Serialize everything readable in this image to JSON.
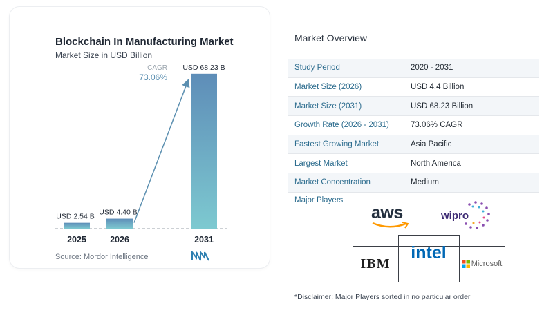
{
  "chart_data": {
    "type": "bar",
    "title": "Blockchain In Manufacturing Market",
    "subtitle": "Market Size in USD Billion",
    "categories": [
      "2025",
      "2026",
      "2031"
    ],
    "values": [
      2.54,
      4.4,
      68.23
    ],
    "data_labels": [
      "USD 2.54 B",
      "USD 4.40 B",
      "USD 68.23 B"
    ],
    "annotation_label": "CAGR",
    "annotation_value": "73.06%",
    "ylim": [
      0,
      70
    ],
    "grid": false,
    "colors": {
      "bar_start": "#7dc9d0",
      "bar_end": "#5e8db8",
      "arrow": "#5b8fb0",
      "cagr": "#5b8fb0"
    }
  },
  "source_text": "Source:  Mordor Intelligence",
  "overview": {
    "title": "Market Overview",
    "rows": [
      {
        "label": "Study Period",
        "value": "2020 - 2031"
      },
      {
        "label": "Market Size (2026)",
        "value": "USD 4.4 Billion"
      },
      {
        "label": "Market Size (2031)",
        "value": "USD 68.23 Billion"
      },
      {
        "label": "Growth Rate (2026 - 2031)",
        "value": "73.06% CAGR"
      },
      {
        "label": "Fastest Growing Market",
        "value": "Asia Pacific"
      },
      {
        "label": "Largest Market",
        "value": "North America"
      },
      {
        "label": "Market Concentration",
        "value": "Medium"
      }
    ],
    "players_label": "Major Players",
    "players": [
      "aws",
      "wipro",
      "IBM",
      "intel",
      "Microsoft"
    ]
  },
  "disclaimer": "*Disclaimer: Major Players sorted in no particular order"
}
